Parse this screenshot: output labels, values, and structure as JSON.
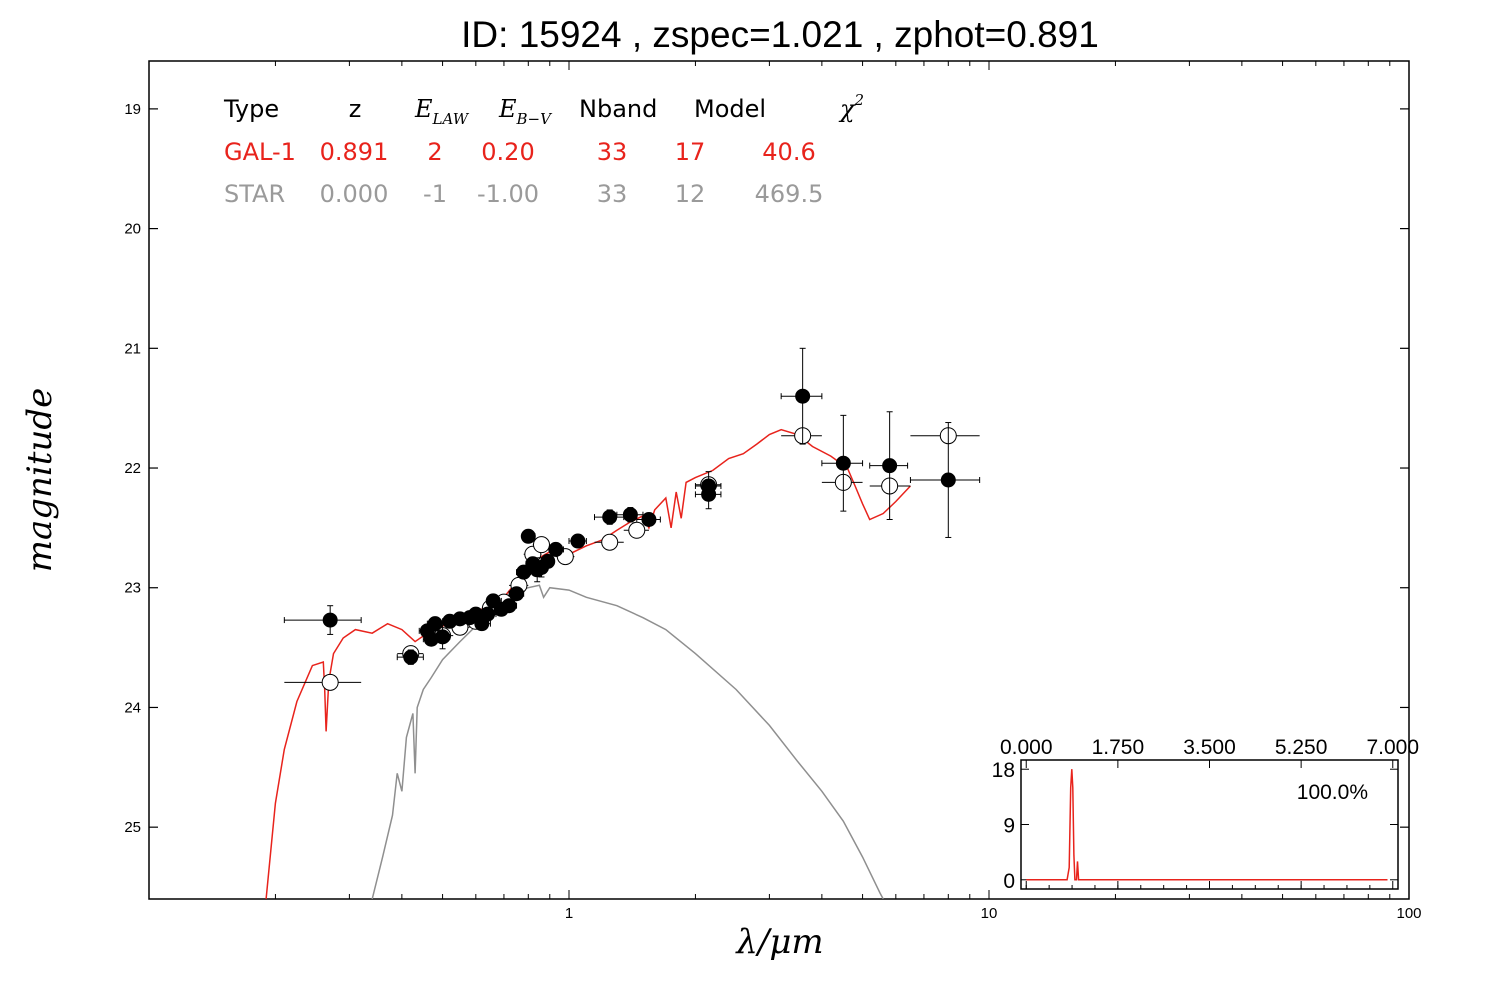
{
  "chart_data": {
    "type": "scatter",
    "title": "ID:  15924 , zspec=1.021 , zphot=0.891",
    "xlabel": "λ/μm",
    "ylabel": "magnitude",
    "xscale": "log",
    "xlim": [
      0.1,
      100
    ],
    "ylim": [
      25.6,
      18.6
    ],
    "x_ticks": [
      "1",
      "10",
      "100"
    ],
    "y_ticks": [
      "19",
      "20",
      "21",
      "22",
      "23",
      "24",
      "25"
    ],
    "table": {
      "headers": [
        {
          "text": "Type",
          "style": "normal"
        },
        {
          "text": "z",
          "style": "normal"
        },
        {
          "text": "E",
          "sub": "LAW",
          "style": "math"
        },
        {
          "text": "E",
          "sub": "B−V",
          "style": "math"
        },
        {
          "text": "Nband",
          "style": "normal"
        },
        {
          "text": "Model",
          "style": "normal"
        },
        {
          "text": "χ",
          "sup": "2",
          "style": "math"
        }
      ],
      "rows": [
        {
          "color": "#e8231c",
          "cells": [
            "GAL-1",
            "0.891",
            "2",
            "0.20",
            "33",
            "17",
            "40.6"
          ]
        },
        {
          "color": "#9a9a9a",
          "cells": [
            "STAR",
            "0.000",
            "-1",
            "-1.00",
            "33",
            "12",
            "469.5"
          ]
        }
      ]
    },
    "series": [
      {
        "type": "line",
        "color": "#e8231c",
        "points": [
          [
            0.19,
            25.6
          ],
          [
            0.2,
            24.8
          ],
          [
            0.21,
            24.35
          ],
          [
            0.225,
            23.95
          ],
          [
            0.245,
            23.65
          ],
          [
            0.26,
            23.62
          ],
          [
            0.262,
            23.85
          ],
          [
            0.264,
            24.2
          ],
          [
            0.268,
            23.78
          ],
          [
            0.275,
            23.55
          ],
          [
            0.29,
            23.42
          ],
          [
            0.31,
            23.35
          ],
          [
            0.34,
            23.38
          ],
          [
            0.37,
            23.3
          ],
          [
            0.4,
            23.35
          ],
          [
            0.43,
            23.45
          ],
          [
            0.46,
            23.38
          ],
          [
            0.5,
            23.32
          ],
          [
            0.55,
            23.25
          ],
          [
            0.6,
            23.2
          ],
          [
            0.65,
            23.15
          ],
          [
            0.7,
            23.08
          ],
          [
            0.75,
            22.95
          ],
          [
            0.8,
            22.82
          ],
          [
            0.85,
            22.75
          ],
          [
            0.9,
            22.7
          ],
          [
            1.0,
            22.72
          ],
          [
            1.1,
            22.65
          ],
          [
            1.2,
            22.6
          ],
          [
            1.3,
            22.52
          ],
          [
            1.4,
            22.45
          ],
          [
            1.5,
            22.4
          ],
          [
            1.55,
            22.5
          ],
          [
            1.6,
            22.35
          ],
          [
            1.7,
            22.25
          ],
          [
            1.75,
            22.5
          ],
          [
            1.8,
            22.2
          ],
          [
            1.85,
            22.42
          ],
          [
            1.9,
            22.12
          ],
          [
            2.0,
            22.08
          ],
          [
            2.2,
            22.02
          ],
          [
            2.4,
            21.92
          ],
          [
            2.6,
            21.88
          ],
          [
            2.8,
            21.8
          ],
          [
            3.0,
            21.72
          ],
          [
            3.2,
            21.68
          ],
          [
            3.5,
            21.72
          ],
          [
            3.8,
            21.82
          ],
          [
            4.2,
            21.9
          ],
          [
            4.6,
            22.0
          ],
          [
            4.8,
            22.15
          ],
          [
            5.0,
            22.3
          ],
          [
            5.2,
            22.43
          ],
          [
            5.6,
            22.38
          ],
          [
            6.0,
            22.28
          ],
          [
            6.5,
            22.15
          ]
        ]
      },
      {
        "type": "line",
        "color": "#8f8f8f",
        "points": [
          [
            0.34,
            25.6
          ],
          [
            0.36,
            25.25
          ],
          [
            0.38,
            24.9
          ],
          [
            0.39,
            24.55
          ],
          [
            0.4,
            24.7
          ],
          [
            0.41,
            24.25
          ],
          [
            0.425,
            24.05
          ],
          [
            0.43,
            24.55
          ],
          [
            0.435,
            24.0
          ],
          [
            0.45,
            23.85
          ],
          [
            0.47,
            23.75
          ],
          [
            0.5,
            23.6
          ],
          [
            0.55,
            23.45
          ],
          [
            0.6,
            23.32
          ],
          [
            0.65,
            23.2
          ],
          [
            0.7,
            23.1
          ],
          [
            0.75,
            23.03
          ],
          [
            0.8,
            23.0
          ],
          [
            0.85,
            22.98
          ],
          [
            0.87,
            23.08
          ],
          [
            0.9,
            23.0
          ],
          [
            1.0,
            23.02
          ],
          [
            1.1,
            23.08
          ],
          [
            1.3,
            23.15
          ],
          [
            1.5,
            23.25
          ],
          [
            1.7,
            23.35
          ],
          [
            2.0,
            23.55
          ],
          [
            2.5,
            23.85
          ],
          [
            3.0,
            24.15
          ],
          [
            3.5,
            24.45
          ],
          [
            4.0,
            24.7
          ],
          [
            4.5,
            24.95
          ],
          [
            5.0,
            25.25
          ],
          [
            5.5,
            25.55
          ],
          [
            5.6,
            25.6
          ]
        ]
      },
      {
        "type": "scatter",
        "style": "filled",
        "points": [
          {
            "x": 0.27,
            "y": 23.27,
            "xerr": [
              0.21,
              0.32
            ],
            "yerr": 0.12
          },
          {
            "x": 0.42,
            "y": 23.58,
            "xerr": [
              0.39,
              0.45
            ],
            "yerr": 0.06
          },
          {
            "x": 0.46,
            "y": 23.36,
            "xerr": [
              0.44,
              0.49
            ],
            "yerr": 0.05
          },
          {
            "x": 0.47,
            "y": 23.43,
            "xerr": [
              0.45,
              0.5
            ],
            "yerr": 0.05
          },
          {
            "x": 0.48,
            "y": 23.3,
            "xerr": [
              0.46,
              0.51
            ],
            "yerr": 0.05
          },
          {
            "x": 0.5,
            "y": 23.41,
            "xerr": [
              0.48,
              0.52
            ],
            "yerr": 0.1
          },
          {
            "x": 0.52,
            "y": 23.28,
            "xerr": [
              0.5,
              0.55
            ],
            "yerr": 0.05
          },
          {
            "x": 0.55,
            "y": 23.26,
            "xerr": [
              0.53,
              0.58
            ],
            "yerr": 0.05
          },
          {
            "x": 0.58,
            "y": 23.25,
            "xerr": [
              0.56,
              0.61
            ],
            "yerr": 0.05
          },
          {
            "x": 0.6,
            "y": 23.22,
            "xerr": [
              0.58,
              0.63
            ],
            "yerr": 0.05
          },
          {
            "x": 0.62,
            "y": 23.3,
            "xerr": [
              0.6,
              0.65
            ],
            "yerr": 0.05
          },
          {
            "x": 0.64,
            "y": 23.22,
            "xerr": [
              0.62,
              0.67
            ],
            "yerr": 0.05
          },
          {
            "x": 0.66,
            "y": 23.11,
            "xerr": [
              0.64,
              0.69
            ],
            "yerr": 0.05
          },
          {
            "x": 0.69,
            "y": 23.18,
            "xerr": [
              0.67,
              0.72
            ],
            "yerr": 0.05
          },
          {
            "x": 0.72,
            "y": 23.15,
            "xerr": [
              0.7,
              0.75
            ],
            "yerr": 0.05
          },
          {
            "x": 0.75,
            "y": 23.05,
            "xerr": [
              0.72,
              0.78
            ],
            "yerr": 0.05
          },
          {
            "x": 0.78,
            "y": 22.87,
            "xerr": [
              0.75,
              0.81
            ],
            "yerr": 0.05
          },
          {
            "x": 0.8,
            "y": 22.57,
            "xerr": [
              0.78,
              0.83
            ],
            "yerr": 0.05
          },
          {
            "x": 0.82,
            "y": 22.8,
            "xerr": [
              0.79,
              0.85
            ],
            "yerr": 0.05
          },
          {
            "x": 0.84,
            "y": 22.85,
            "xerr": [
              0.81,
              0.87
            ],
            "yerr": 0.1
          },
          {
            "x": 0.86,
            "y": 22.83,
            "xerr": [
              0.83,
              0.89
            ],
            "yerr": 0.08
          },
          {
            "x": 0.89,
            "y": 22.78,
            "xerr": [
              0.86,
              0.92
            ],
            "yerr": 0.05
          },
          {
            "x": 0.93,
            "y": 22.68,
            "xerr": [
              0.9,
              0.97
            ],
            "yerr": 0.05
          },
          {
            "x": 1.05,
            "y": 22.61,
            "xerr": [
              1.0,
              1.1
            ],
            "yerr": 0.05
          },
          {
            "x": 1.25,
            "y": 22.41,
            "xerr": [
              1.15,
              1.35
            ],
            "yerr": 0.06
          },
          {
            "x": 1.4,
            "y": 22.39,
            "xerr": [
              1.3,
              1.5
            ],
            "yerr": 0.06
          },
          {
            "x": 1.55,
            "y": 22.43,
            "xerr": [
              1.45,
              1.65
            ],
            "yerr": 0.05
          },
          {
            "x": 2.15,
            "y": 22.15,
            "xerr": [
              2.0,
              2.3
            ],
            "yerr": 0.12
          },
          {
            "x": 2.15,
            "y": 22.22,
            "xerr": [
              2.0,
              2.3
            ],
            "yerr": 0.12
          },
          {
            "x": 3.6,
            "y": 21.4,
            "xerr": [
              3.2,
              4.0
            ],
            "yerr": 0.4
          },
          {
            "x": 4.5,
            "y": 21.96,
            "xerr": [
              4.0,
              5.0
            ],
            "yerr": 0.4
          },
          {
            "x": 5.8,
            "y": 21.98,
            "xerr": [
              5.2,
              6.4
            ],
            "yerr": 0.45
          },
          {
            "x": 8.0,
            "y": 22.1,
            "xerr": [
              6.5,
              9.5
            ],
            "yerr": 0.48
          }
        ]
      },
      {
        "type": "scatter",
        "style": "open",
        "points": [
          {
            "x": 0.27,
            "y": 23.79,
            "xerr": [
              0.21,
              0.32
            ]
          },
          {
            "x": 0.42,
            "y": 23.55,
            "xerr": [
              0.39,
              0.45
            ]
          },
          {
            "x": 0.5,
            "y": 23.4,
            "xerr": [
              0.47,
              0.53
            ]
          },
          {
            "x": 0.55,
            "y": 23.33,
            "xerr": [
              0.52,
              0.58
            ]
          },
          {
            "x": 0.6,
            "y": 23.28,
            "xerr": [
              0.57,
              0.63
            ]
          },
          {
            "x": 0.65,
            "y": 23.17,
            "xerr": [
              0.62,
              0.68
            ]
          },
          {
            "x": 0.7,
            "y": 23.12,
            "xerr": [
              0.67,
              0.73
            ]
          },
          {
            "x": 0.76,
            "y": 22.98,
            "xerr": [
              0.72,
              0.8
            ]
          },
          {
            "x": 0.82,
            "y": 22.72,
            "xerr": [
              0.78,
              0.86
            ]
          },
          {
            "x": 0.86,
            "y": 22.64,
            "xerr": [
              0.82,
              0.9
            ]
          },
          {
            "x": 0.98,
            "y": 22.74,
            "xerr": [
              0.93,
              1.03
            ]
          },
          {
            "x": 1.25,
            "y": 22.62,
            "xerr": [
              1.15,
              1.35
            ]
          },
          {
            "x": 1.45,
            "y": 22.52,
            "xerr": [
              1.35,
              1.55
            ]
          },
          {
            "x": 2.15,
            "y": 22.14,
            "xerr": [
              2.0,
              2.3
            ]
          },
          {
            "x": 3.6,
            "y": 21.73,
            "xerr": [
              3.2,
              4.0
            ]
          },
          {
            "x": 4.5,
            "y": 22.12,
            "xerr": [
              4.0,
              5.0
            ]
          },
          {
            "x": 5.8,
            "y": 22.15,
            "xerr": [
              5.2,
              6.5
            ]
          },
          {
            "x": 8.0,
            "y": 21.73,
            "xerr": [
              6.5,
              9.5
            ]
          }
        ]
      }
    ],
    "inset": {
      "type": "line",
      "color": "#e8231c",
      "xlim": [
        -0.1,
        7.1
      ],
      "ylim": [
        -1.5,
        19.5
      ],
      "x_ticks": [
        "0.000",
        "1.750",
        "3.500",
        "5.250",
        "7.000"
      ],
      "y_ticks": [
        "0",
        "9",
        "18"
      ],
      "label": "100.0%",
      "points": [
        [
          0,
          0
        ],
        [
          0.78,
          0
        ],
        [
          0.82,
          2
        ],
        [
          0.85,
          15
        ],
        [
          0.87,
          18
        ],
        [
          0.89,
          15
        ],
        [
          0.91,
          4
        ],
        [
          0.93,
          0
        ],
        [
          0.96,
          0
        ],
        [
          0.98,
          3
        ],
        [
          1.0,
          0
        ],
        [
          6.9,
          0
        ]
      ]
    }
  }
}
